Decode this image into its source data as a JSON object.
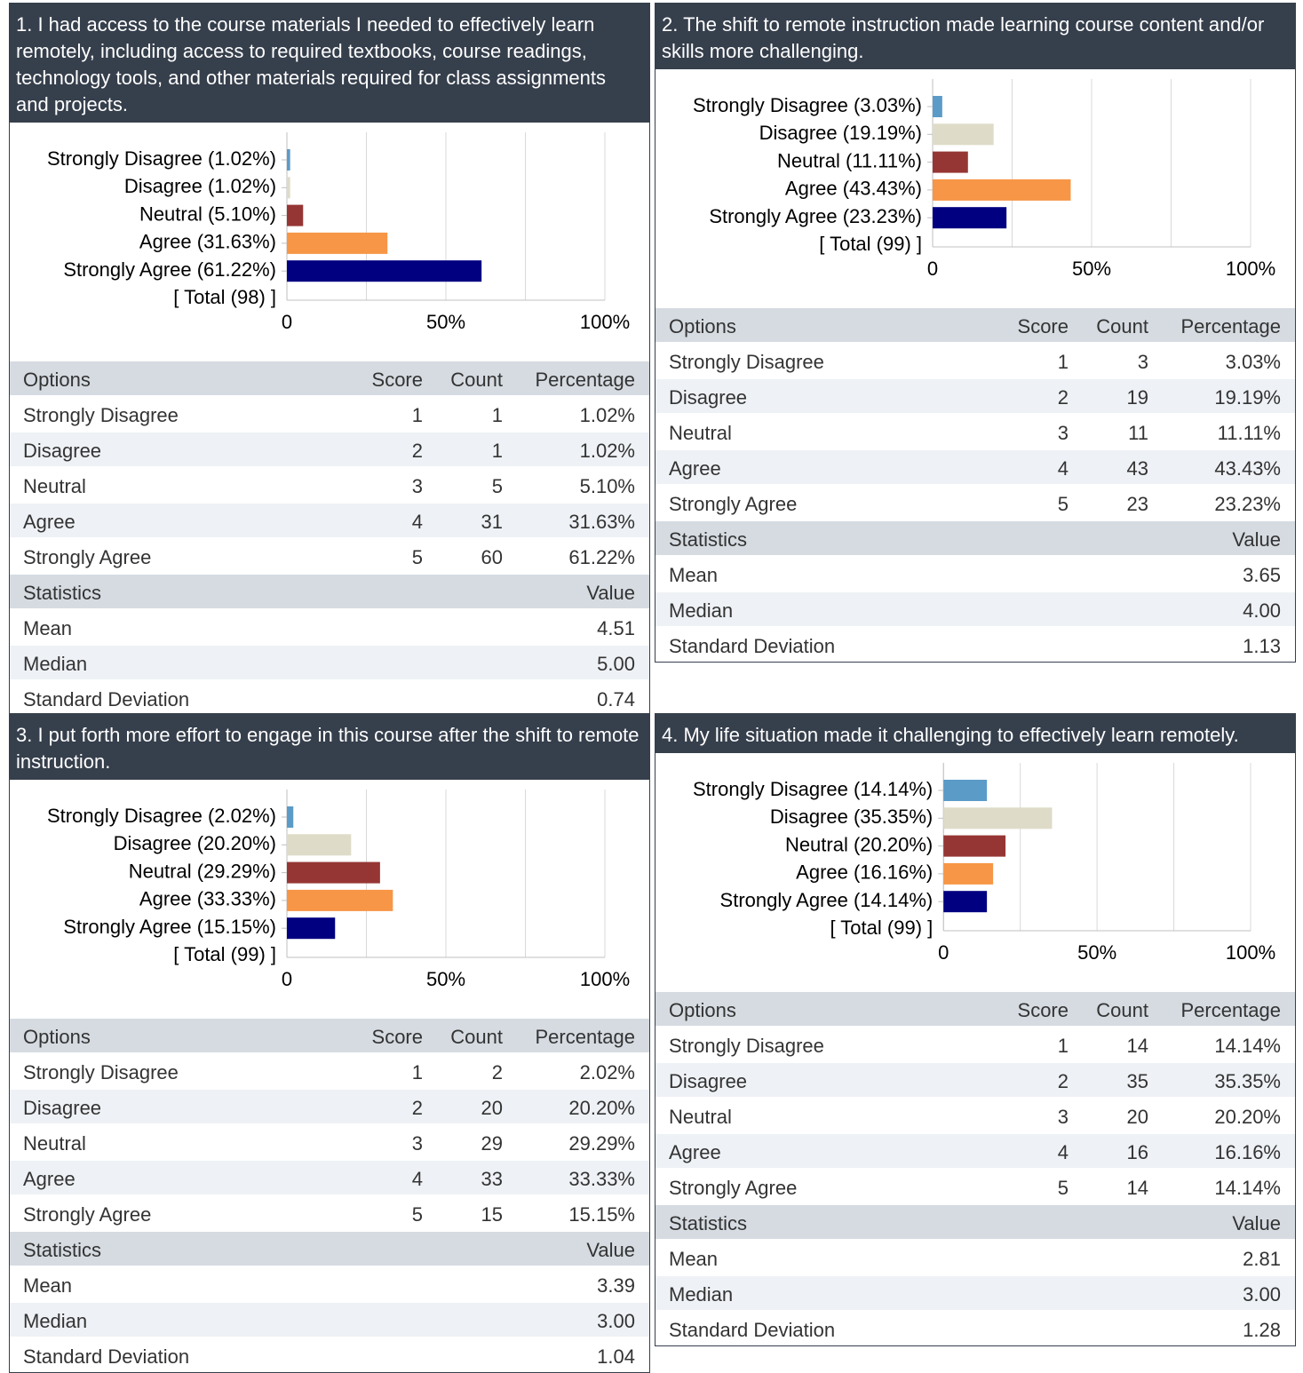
{
  "panels": [
    {
      "title": "1. I had access to the course materials I needed to effectively learn remotely, including access to required textbooks, course readings, technology tools, and other materials required for class assignments and projects.",
      "chart": {
        "type": "bar",
        "orientation": "horizontal",
        "categories": [
          "Strongly Disagree (1.02%)",
          "Disagree (1.02%)",
          "Neutral (5.10%)",
          "Agree (31.63%)",
          "Strongly Agree (61.22%)"
        ],
        "values": [
          1.02,
          1.02,
          5.1,
          31.63,
          61.22
        ],
        "colors": [
          "#5b9bc8",
          "#dedbc8",
          "#963634",
          "#f79646",
          "#000080"
        ],
        "total_label": "[ Total (98) ]",
        "xlim": [
          0,
          100
        ],
        "xticks": [
          0,
          {
            "value": 50,
            "label": "50%"
          },
          {
            "value": 100,
            "label": "100%"
          }
        ],
        "minor_xticks": [
          25,
          75
        ],
        "grid": true
      },
      "table": {
        "header": [
          "Options",
          "Score",
          "Count",
          "Percentage"
        ],
        "rows": [
          [
            "Strongly Disagree",
            1,
            1,
            "1.02%"
          ],
          [
            "Disagree",
            2,
            1,
            "1.02%"
          ],
          [
            "Neutral",
            3,
            5,
            "5.10%"
          ],
          [
            "Agree",
            4,
            31,
            "31.63%"
          ],
          [
            "Strongly Agree",
            5,
            60,
            "61.22%"
          ]
        ],
        "stats_header": [
          "Statistics",
          "Value"
        ],
        "stats": [
          [
            "Mean",
            "4.51"
          ],
          [
            "Median",
            "5.00"
          ],
          [
            "Standard Deviation",
            "0.74"
          ]
        ]
      }
    },
    {
      "title": "2. The shift to remote instruction made learning course content and/or skills more challenging.",
      "chart": {
        "type": "bar",
        "orientation": "horizontal",
        "categories": [
          "Strongly Disagree (3.03%)",
          "Disagree (19.19%)",
          "Neutral (11.11%)",
          "Agree (43.43%)",
          "Strongly Agree (23.23%)"
        ],
        "values": [
          3.03,
          19.19,
          11.11,
          43.43,
          23.23
        ],
        "colors": [
          "#5b9bc8",
          "#dedbc8",
          "#963634",
          "#f79646",
          "#000080"
        ],
        "total_label": "[ Total (99) ]",
        "xlim": [
          0,
          100
        ],
        "xticks": [
          0,
          {
            "value": 50,
            "label": "50%"
          },
          {
            "value": 100,
            "label": "100%"
          }
        ],
        "minor_xticks": [
          25,
          75
        ],
        "grid": true
      },
      "table": {
        "header": [
          "Options",
          "Score",
          "Count",
          "Percentage"
        ],
        "rows": [
          [
            "Strongly Disagree",
            1,
            3,
            "3.03%"
          ],
          [
            "Disagree",
            2,
            19,
            "19.19%"
          ],
          [
            "Neutral",
            3,
            11,
            "11.11%"
          ],
          [
            "Agree",
            4,
            43,
            "43.43%"
          ],
          [
            "Strongly Agree",
            5,
            23,
            "23.23%"
          ]
        ],
        "stats_header": [
          "Statistics",
          "Value"
        ],
        "stats": [
          [
            "Mean",
            "3.65"
          ],
          [
            "Median",
            "4.00"
          ],
          [
            "Standard Deviation",
            "1.13"
          ]
        ]
      }
    },
    {
      "title": "3. I put forth more effort to engage in this course after the shift to remote instruction.",
      "chart": {
        "type": "bar",
        "orientation": "horizontal",
        "categories": [
          "Strongly Disagree (2.02%)",
          "Disagree (20.20%)",
          "Neutral (29.29%)",
          "Agree (33.33%)",
          "Strongly Agree (15.15%)"
        ],
        "values": [
          2.02,
          20.2,
          29.29,
          33.33,
          15.15
        ],
        "colors": [
          "#5b9bc8",
          "#dedbc8",
          "#963634",
          "#f79646",
          "#000080"
        ],
        "total_label": "[ Total (99) ]",
        "xlim": [
          0,
          100
        ],
        "xticks": [
          0,
          {
            "value": 50,
            "label": "50%"
          },
          {
            "value": 100,
            "label": "100%"
          }
        ],
        "minor_xticks": [
          25,
          75
        ],
        "grid": true
      },
      "table": {
        "header": [
          "Options",
          "Score",
          "Count",
          "Percentage"
        ],
        "rows": [
          [
            "Strongly Disagree",
            1,
            2,
            "2.02%"
          ],
          [
            "Disagree",
            2,
            20,
            "20.20%"
          ],
          [
            "Neutral",
            3,
            29,
            "29.29%"
          ],
          [
            "Agree",
            4,
            33,
            "33.33%"
          ],
          [
            "Strongly Agree",
            5,
            15,
            "15.15%"
          ]
        ],
        "stats_header": [
          "Statistics",
          "Value"
        ],
        "stats": [
          [
            "Mean",
            "3.39"
          ],
          [
            "Median",
            "3.00"
          ],
          [
            "Standard Deviation",
            "1.04"
          ]
        ]
      }
    },
    {
      "title": "4. My life situation made it challenging to effectively learn remotely.",
      "chart": {
        "type": "bar",
        "orientation": "horizontal",
        "categories": [
          "Strongly Disagree (14.14%)",
          "Disagree (35.35%)",
          "Neutral (20.20%)",
          "Agree (16.16%)",
          "Strongly Agree (14.14%)"
        ],
        "values": [
          14.14,
          35.35,
          20.2,
          16.16,
          14.14
        ],
        "colors": [
          "#5b9bc8",
          "#dedbc8",
          "#963634",
          "#f79646",
          "#000080"
        ],
        "total_label": "[ Total (99) ]",
        "xlim": [
          0,
          100
        ],
        "xticks": [
          0,
          {
            "value": 50,
            "label": "50%"
          },
          {
            "value": 100,
            "label": "100%"
          }
        ],
        "minor_xticks": [
          25,
          75
        ],
        "grid": true
      },
      "table": {
        "header": [
          "Options",
          "Score",
          "Count",
          "Percentage"
        ],
        "rows": [
          [
            "Strongly Disagree",
            1,
            14,
            "14.14%"
          ],
          [
            "Disagree",
            2,
            35,
            "35.35%"
          ],
          [
            "Neutral",
            3,
            20,
            "20.20%"
          ],
          [
            "Agree",
            4,
            16,
            "16.16%"
          ],
          [
            "Strongly Agree",
            5,
            14,
            "14.14%"
          ]
        ],
        "stats_header": [
          "Statistics",
          "Value"
        ],
        "stats": [
          [
            "Mean",
            "2.81"
          ],
          [
            "Median",
            "3.00"
          ],
          [
            "Standard Deviation",
            "1.28"
          ]
        ]
      }
    }
  ]
}
